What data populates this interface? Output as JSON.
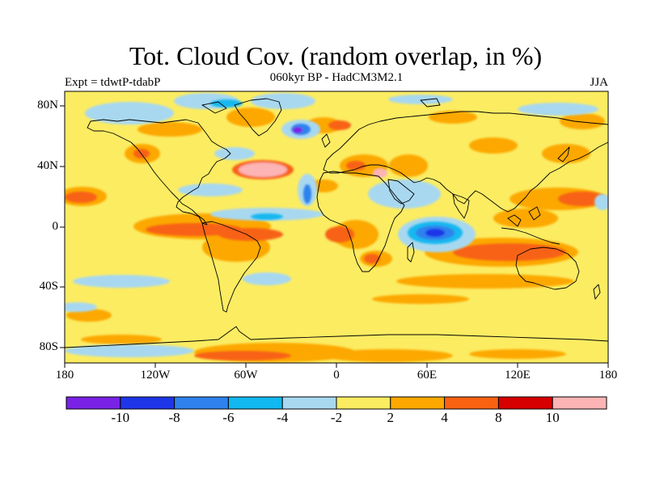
{
  "title": "Tot. Cloud Cov. (random overlap, in %)",
  "subtitle": "060kyr BP - HadCM3M2.1",
  "left_label": "Expt = tdwtP-tdabP",
  "right_label": "JJA",
  "lat_ticks": [
    "80N",
    "40N",
    "0",
    "40S",
    "80S"
  ],
  "lon_ticks": [
    "180",
    "120W",
    "60W",
    "0",
    "60E",
    "120E",
    "180"
  ],
  "colorbar": {
    "colors": [
      "#7a22e6",
      "#1e36e8",
      "#2f82ee",
      "#12b8f0",
      "#a8d8f0",
      "#fcec62",
      "#fca800",
      "#f86212",
      "#d60000",
      "#fcb4b4"
    ],
    "labels": [
      "-10",
      "-8",
      "-6",
      "-4",
      "-2",
      "2",
      "4",
      "8",
      "10"
    ]
  },
  "chart_data": {
    "type": "heatmap",
    "variable": "Tot. Cloud Cov. (random overlap, in %)",
    "experiment": "Expt = tdwtP-tdabP",
    "period": "060kyr BP - HadCM3M2.1",
    "season": "JJA",
    "lat_range": [
      -90,
      90
    ],
    "lon_range": [
      -180,
      180
    ],
    "levels": [
      -10,
      -8,
      -6,
      -4,
      -2,
      2,
      4,
      8,
      10
    ],
    "notable_regions": [
      {
        "lat": 37,
        "lon": -35,
        "value": 12
      },
      {
        "lat": 66,
        "lon": -15,
        "value": -10
      },
      {
        "lat": 0,
        "lon": 62,
        "value": -9
      },
      {
        "lat": 20,
        "lon": -17,
        "value": -7
      },
      {
        "lat": 37,
        "lon": 28,
        "value": 11
      },
      {
        "lat": -14,
        "lon": 108,
        "value": 6
      },
      {
        "lat": 9,
        "lon": -162,
        "value": 5
      },
      {
        "lat": 8,
        "lon": 160,
        "value": 6
      },
      {
        "lat": -84,
        "lon": -50,
        "value": 5
      },
      {
        "lat": 40,
        "lon": -100,
        "value": 4
      },
      {
        "lat": 47,
        "lon": 150,
        "value": 5
      }
    ]
  }
}
